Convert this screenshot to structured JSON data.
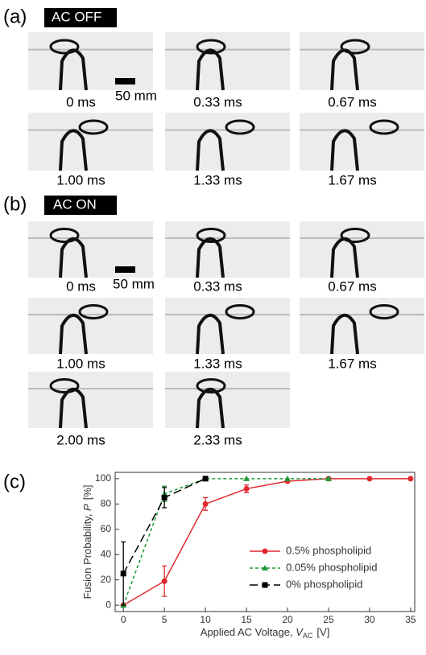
{
  "panel_a": {
    "label": "(a)",
    "tag": "AC OFF",
    "scale_bar": "50 mm",
    "frames": [
      "0 ms",
      "0.33 ms",
      "0.67 ms",
      "1.00 ms",
      "1.33 ms",
      "1.67 ms"
    ]
  },
  "panel_b": {
    "label": "(b)",
    "tag": "AC ON",
    "scale_bar": "50 mm",
    "frames": [
      "0 ms",
      "0.33 ms",
      "0.67 ms",
      "1.00 ms",
      "1.33 ms",
      "1.67 ms",
      "2.00 ms",
      "2.33 ms"
    ]
  },
  "panel_c": {
    "label": "(c)"
  },
  "chart_data": {
    "type": "line",
    "x_label": {
      "text": "Applied AC Voltage, ",
      "var": "V",
      "sub": "AC",
      "unit": "[V]"
    },
    "y_label": {
      "text": "Fusion Probability, ",
      "var": "P",
      "unit": "[%]"
    },
    "xlim": [
      -1,
      35.5
    ],
    "ylim": [
      -5,
      105
    ],
    "xticks": [
      0,
      5,
      10,
      15,
      20,
      25,
      30,
      35
    ],
    "yticks": [
      0,
      20,
      40,
      60,
      80,
      100
    ],
    "legend": "lower right",
    "series": [
      {
        "name": "0.5% phospholipid",
        "color": "#e0282e",
        "marker": "circle",
        "linestyle": "solid",
        "x": [
          0,
          5,
          10,
          15,
          20,
          25,
          30,
          35
        ],
        "values": [
          0,
          19,
          80,
          92,
          98,
          100,
          100,
          100
        ],
        "errors": [
          0,
          12,
          5,
          3,
          1,
          0,
          0,
          0
        ]
      },
      {
        "name": "0.05% phospholipid",
        "color": "#1f9a3a",
        "marker": "triangle",
        "linestyle": "dotted",
        "x": [
          0,
          5,
          10,
          15,
          20,
          25
        ],
        "values": [
          0,
          88,
          100,
          100,
          100,
          100
        ],
        "errors": [
          0,
          6,
          0,
          0,
          0,
          0
        ]
      },
      {
        "name": "0% phospholipid",
        "color": "#000000",
        "marker": "square",
        "linestyle": "dashed",
        "x": [
          0,
          5,
          10
        ],
        "values": [
          25,
          85,
          100
        ],
        "errors": [
          25,
          8,
          0
        ]
      }
    ]
  }
}
